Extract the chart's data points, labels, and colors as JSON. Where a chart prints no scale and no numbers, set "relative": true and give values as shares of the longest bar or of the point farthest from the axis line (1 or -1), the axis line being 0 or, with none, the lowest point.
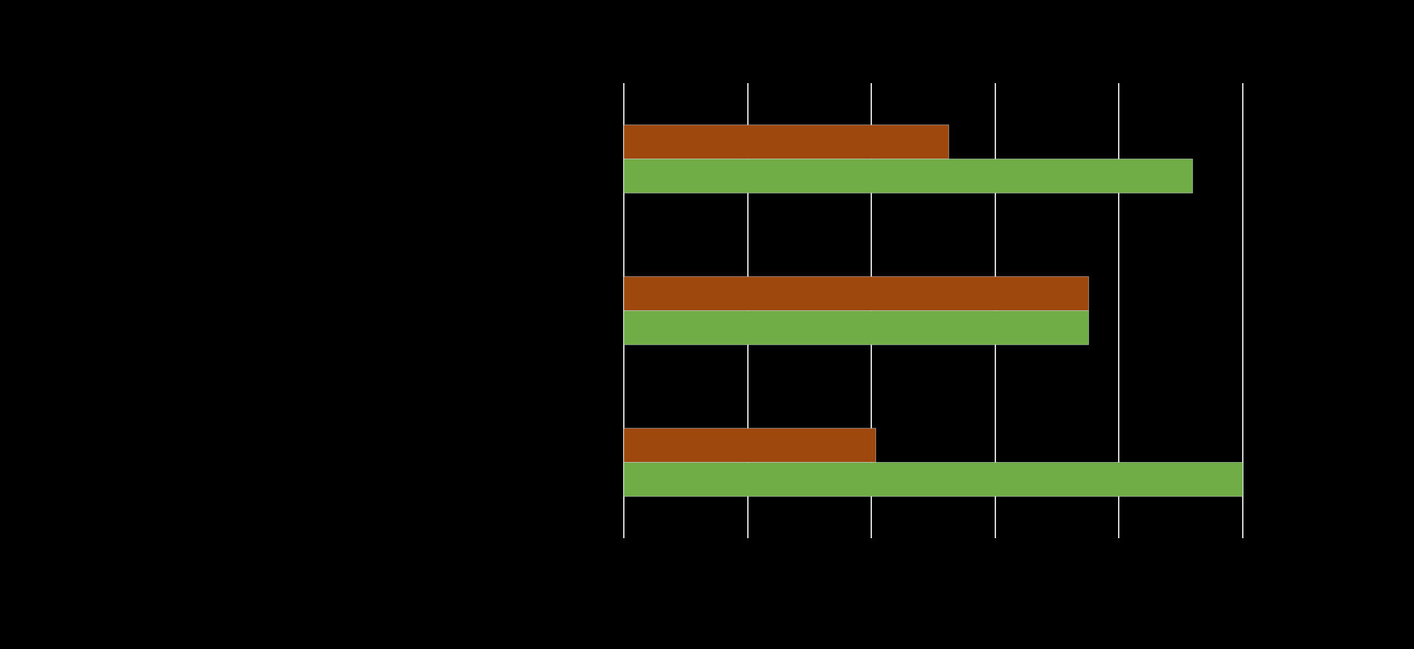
{
  "chart_data": {
    "type": "bar",
    "orientation": "horizontal",
    "relative": true,
    "categories": [
      null,
      null,
      null
    ],
    "series": [
      {
        "color": "#9e480e",
        "values": [
          0.525,
          0.751,
          0.407
        ]
      },
      {
        "color": "#70ad47",
        "values": [
          0.919,
          0.751,
          1
        ]
      }
    ],
    "grid": "x"
  }
}
